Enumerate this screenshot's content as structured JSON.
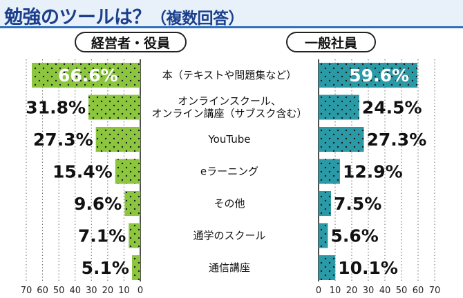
{
  "title": "勉強のツールは？",
  "title_suffix": "（複数回答）",
  "groups": [
    "経営者・役員",
    "一般社員"
  ],
  "colors": {
    "left_bar": "#8cc63f",
    "right_bar": "#2a9aa7",
    "title": "#1b3f8c",
    "dots": "#1a1a1a"
  },
  "chart_data": [
    {
      "type": "bar",
      "orientation": "horizontal",
      "direction": "right-to-left",
      "title": "経営者・役員",
      "categories": [
        "本（テキストや問題集など）",
        "オンラインスクール、オンライン講座（サブスク含む）",
        "YouTube",
        "eラーニング",
        "その他",
        "通学のスクール",
        "通信講座"
      ],
      "values": [
        66.6,
        31.8,
        27.3,
        15.4,
        9.6,
        7.1,
        5.1
      ],
      "labels": [
        "66.6%",
        "31.8%",
        "27.3%",
        "15.4%",
        "9.6%",
        "7.1%",
        "5.1%"
      ],
      "xlim": [
        0,
        70
      ],
      "ticks": [
        "70",
        "60",
        "50",
        "40",
        "30",
        "20",
        "10",
        "0"
      ],
      "grid": true
    },
    {
      "type": "bar",
      "orientation": "horizontal",
      "direction": "left-to-right",
      "title": "一般社員",
      "categories": [
        "本（テキストや問題集など）",
        "オンラインスクール、オンライン講座（サブスク含む）",
        "YouTube",
        "eラーニング",
        "その他",
        "通学のスクール",
        "通信講座"
      ],
      "values": [
        59.6,
        24.5,
        27.3,
        12.9,
        7.5,
        5.6,
        10.1
      ],
      "labels": [
        "59.6%",
        "24.5%",
        "27.3%",
        "12.9%",
        "7.5%",
        "5.6%",
        "10.1%"
      ],
      "xlim": [
        0,
        70
      ],
      "ticks": [
        "0",
        "10",
        "20",
        "30",
        "40",
        "50",
        "60",
        "70"
      ],
      "grid": true
    }
  ],
  "category_lines": [
    [
      "本（テキストや問題集など）"
    ],
    [
      "オンラインスクール、",
      "オンライン講座（サブスク含む）"
    ],
    [
      "YouTube"
    ],
    [
      "eラーニング"
    ],
    [
      "その他"
    ],
    [
      "通学のスクール"
    ],
    [
      "通信講座"
    ]
  ]
}
